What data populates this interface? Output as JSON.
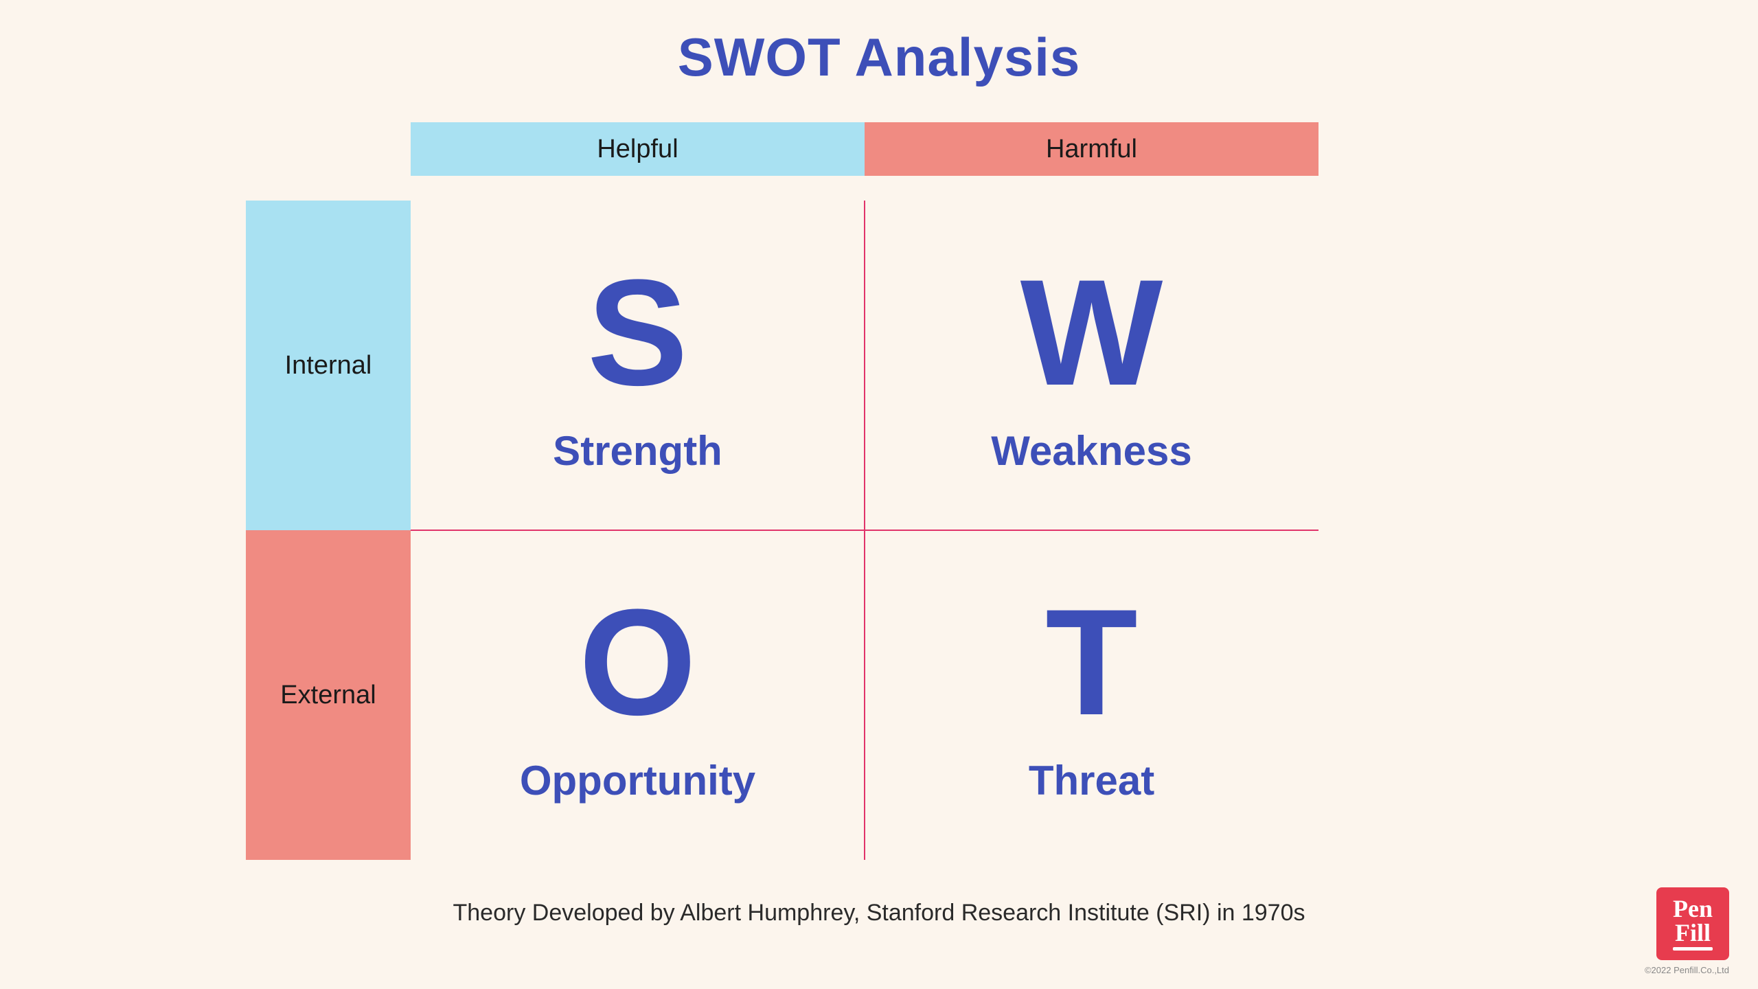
{
  "type": "infographic",
  "background_color": "#fcf5ed",
  "title": {
    "text": "SWOT Analysis",
    "color": "#3d4fb8",
    "fontsize": 78,
    "fontweight": 800
  },
  "column_headers": [
    {
      "label": "Helpful",
      "bg": "#a9e1f2",
      "text_color": "#1a1a1a"
    },
    {
      "label": "Harmful",
      "bg": "#f08b82",
      "text_color": "#1a1a1a"
    }
  ],
  "row_headers": [
    {
      "label": "Internal",
      "bg": "#a9e1f2",
      "text_color": "#1a1a1a"
    },
    {
      "label": "External",
      "bg": "#f08b82",
      "text_color": "#1a1a1a"
    }
  ],
  "header_fontsize": 38,
  "quadrants": [
    {
      "letter": "S",
      "label": "Strength"
    },
    {
      "letter": "W",
      "label": "Weakness"
    },
    {
      "letter": "O",
      "label": "Opportunity"
    },
    {
      "letter": "T",
      "label": "Threat"
    }
  ],
  "quadrant_letter_fontsize": 220,
  "quadrant_label_fontsize": 60,
  "quadrant_text_color": "#3d4fb8",
  "divider_color": "#e0336a",
  "footnote": {
    "text": "Theory Developed by Albert Humphrey, Stanford Research Institute (SRI) in 1970s",
    "fontsize": 34,
    "color": "#2a2a2a"
  },
  "logo": {
    "line1": "Pen",
    "line2": "Fill",
    "bg": "#e73c4e",
    "text_color": "#ffffff"
  },
  "copyright": "©2022 Penfill.Co.,Ltd"
}
